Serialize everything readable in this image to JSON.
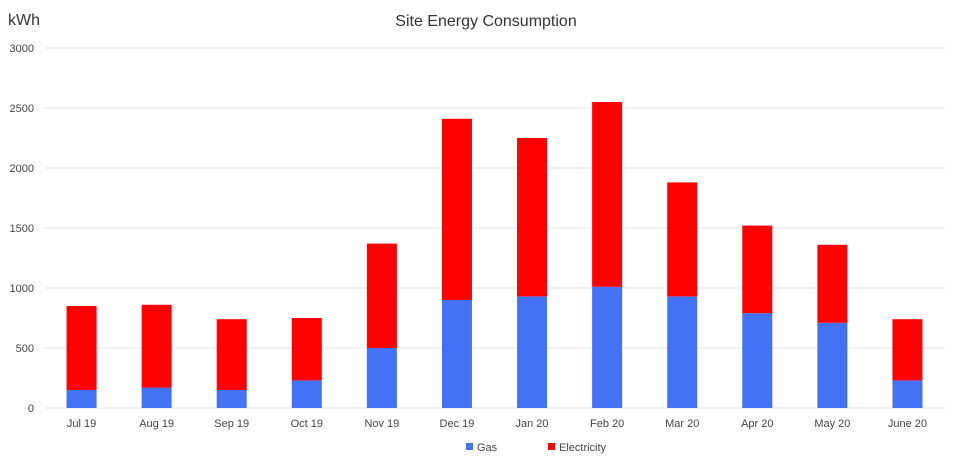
{
  "chart_data": {
    "type": "bar",
    "stacked": true,
    "title": "Site Energy Consumption",
    "unit_label": "kWh",
    "xlabel": "",
    "ylabel": "kWh",
    "ylim": [
      0,
      3000
    ],
    "yticks": [
      0,
      500,
      1000,
      1500,
      2000,
      2500,
      3000
    ],
    "grid": true,
    "legend_position": "bottom",
    "categories": [
      "Jul 19",
      "Aug 19",
      "Sep 19",
      "Oct 19",
      "Nov 19",
      "Dec 19",
      "Jan 20",
      "Feb 20",
      "Mar 20",
      "Apr 20",
      "May 20",
      "June 20"
    ],
    "series": [
      {
        "name": "Gas",
        "color": "#4472F4",
        "values": [
          150,
          170,
          150,
          230,
          500,
          900,
          930,
          1010,
          930,
          790,
          710,
          230
        ]
      },
      {
        "name": "Electricity",
        "color": "#FF0000",
        "values": [
          700,
          690,
          590,
          520,
          870,
          1510,
          1320,
          1540,
          950,
          730,
          650,
          510
        ]
      }
    ]
  }
}
